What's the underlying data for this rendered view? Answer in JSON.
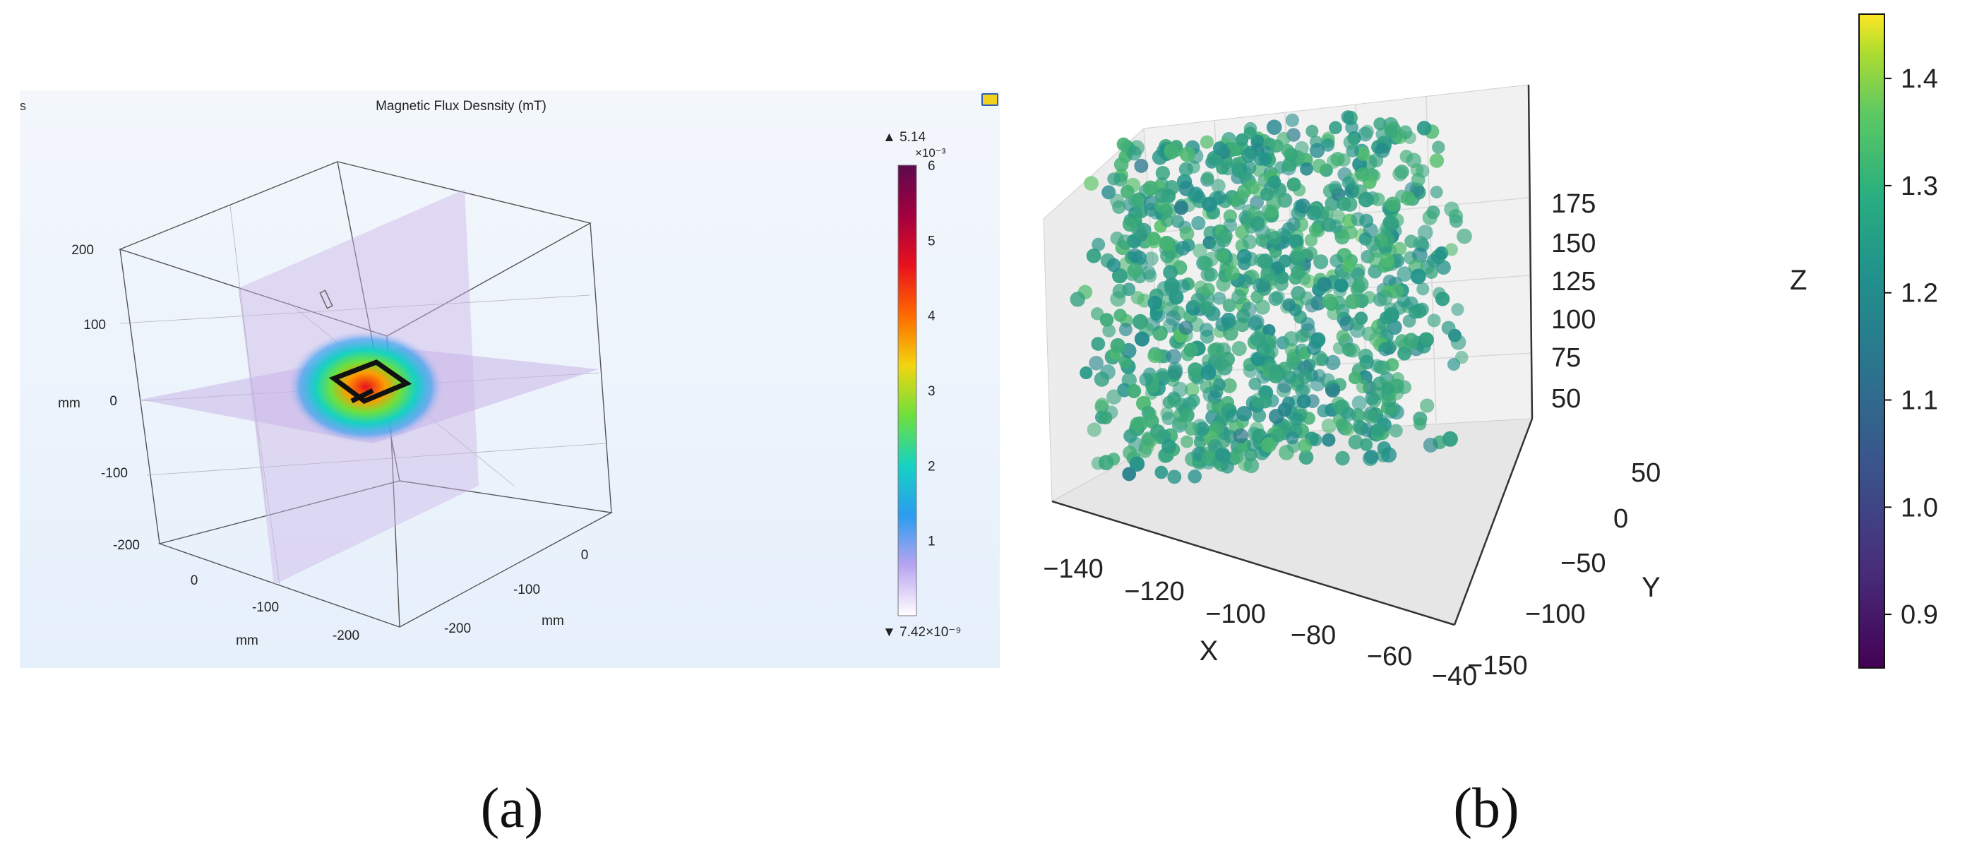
{
  "captions": {
    "a": "(a)",
    "b": "(b)"
  },
  "panel_a": {
    "corner_label": "s",
    "title": "Magnetic Flux Desnsity (mT)",
    "badge_icon": "window-icon",
    "colorbar": {
      "max_label": "▲ 5.14",
      "exponent": "×10⁻³",
      "min_label": "▼ 7.42×10⁻⁹",
      "ticks": [
        "6",
        "5",
        "4",
        "3",
        "2",
        "1"
      ],
      "colors": [
        "#5c0a4e",
        "#a3003f",
        "#e8111e",
        "#ff6a00",
        "#f2d50f",
        "#6ee03c",
        "#16d2c3",
        "#2b9cf0",
        "#b8a4f0",
        "#ffffff"
      ]
    },
    "axis_z": {
      "unit": "mm",
      "ticks": [
        "200",
        "100",
        "0",
        "-100",
        "-200"
      ]
    },
    "axis_x": {
      "unit": "mm",
      "ticks": [
        "0",
        "-100",
        "-200"
      ]
    },
    "axis_y": {
      "unit": "mm",
      "ticks": [
        "0",
        "-100",
        "-200"
      ]
    }
  },
  "chart_data": [
    {
      "type": "heatmap",
      "title": "Magnetic Flux Desnsity (mT)",
      "quantity": "Magnetic flux density",
      "unit": "mT",
      "color_range": [
        7.42e-09,
        0.00514
      ],
      "colorbar_ticks": [
        1,
        2,
        3,
        4,
        5,
        6
      ],
      "colorbar_scale": "×10⁻³",
      "xlabel": "mm",
      "ylabel": "mm",
      "zlabel": "mm",
      "xlim": [
        -200,
        0
      ],
      "ylim": [
        -200,
        0
      ],
      "zlim": [
        -200,
        200
      ]
    },
    {
      "type": "scatter",
      "projection": "3d",
      "xlabel": "X",
      "ylabel": "Y",
      "zlabel": "Z",
      "xlim": [
        -150,
        -40
      ],
      "ylim": [
        -150,
        60
      ],
      "zlim": [
        30,
        190
      ],
      "x_ticks": [
        "−140",
        "−120",
        "−100",
        "−80",
        "−60",
        "−40"
      ],
      "y_ticks": [
        "−150",
        "−100",
        "−50",
        "0",
        "50"
      ],
      "z_ticks": [
        "50",
        "75",
        "100",
        "125",
        "150",
        "175"
      ],
      "colorbar": {
        "min": 0.85,
        "max": 1.46,
        "ticks": [
          "0.9",
          "1.0",
          "1.1",
          "1.2",
          "1.3",
          "1.4"
        ]
      },
      "value_distribution": {
        "typical": 1.2,
        "range": [
          0.85,
          1.46
        ]
      },
      "approx_point_count": 1000
    }
  ]
}
